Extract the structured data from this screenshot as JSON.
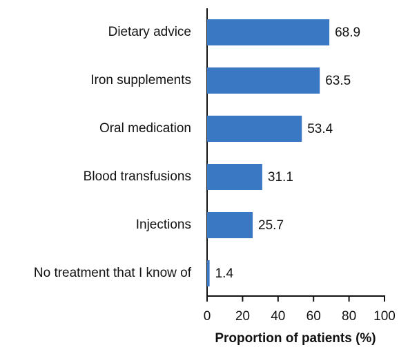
{
  "chart_data": {
    "type": "bar",
    "orientation": "horizontal",
    "categories": [
      "Dietary advice",
      "Iron supplements",
      "Oral medication",
      "Blood transfusions",
      "Injections",
      "No treatment that I know of"
    ],
    "values": [
      68.9,
      63.5,
      53.4,
      31.1,
      25.7,
      1.4
    ],
    "color": "#3a78c3",
    "xlabel": "Proportion of patients (%)",
    "xlim": [
      0,
      100
    ],
    "xticks": [
      0,
      20,
      40,
      60,
      80,
      100
    ]
  }
}
